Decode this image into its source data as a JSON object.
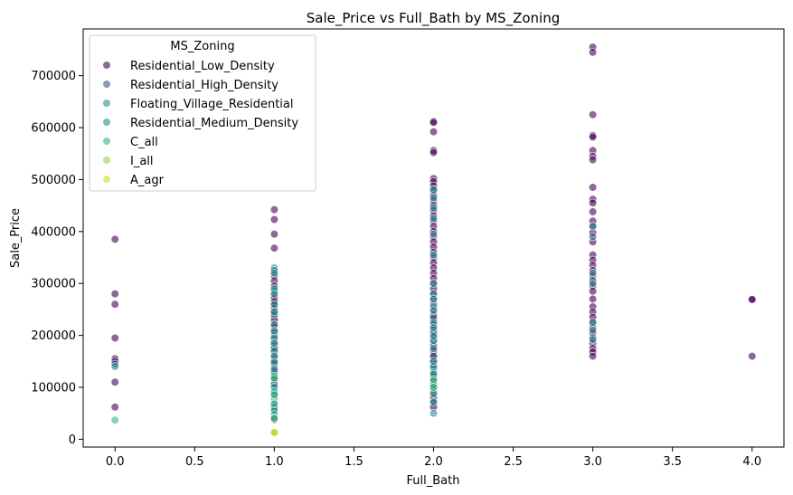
{
  "chart_data": {
    "type": "scatter",
    "title": "Sale_Price vs Full_Bath by MS_Zoning",
    "xlabel": "Full_Bath",
    "ylabel": "Sale_Price",
    "xlim": [
      -0.2,
      4.2
    ],
    "ylim": [
      -15000,
      790000
    ],
    "xticks": [
      0.0,
      0.5,
      1.0,
      1.5,
      2.0,
      2.5,
      3.0,
      3.5,
      4.0
    ],
    "xtick_labels": [
      "0.0",
      "0.5",
      "1.0",
      "1.5",
      "2.0",
      "2.5",
      "3.0",
      "3.5",
      "4.0"
    ],
    "yticks": [
      0,
      100000,
      200000,
      300000,
      400000,
      500000,
      600000,
      700000
    ],
    "ytick_labels": [
      "0",
      "100000",
      "200000",
      "300000",
      "400000",
      "500000",
      "600000",
      "700000"
    ],
    "grid": false,
    "legend": {
      "title": "MS_Zoning",
      "position": "top-left"
    },
    "series": [
      {
        "name": "Residential_Low_Density",
        "color": "#440154",
        "points": [
          [
            0,
            385000
          ],
          [
            0,
            280000
          ],
          [
            0,
            260000
          ],
          [
            0,
            195000
          ],
          [
            0,
            155000
          ],
          [
            0,
            150000
          ],
          [
            0,
            110000
          ],
          [
            0,
            62000
          ],
          [
            1,
            442000
          ],
          [
            1,
            423000
          ],
          [
            1,
            395000
          ],
          [
            1,
            368000
          ],
          [
            1,
            325000
          ],
          [
            1,
            315000
          ],
          [
            1,
            305000
          ],
          [
            1,
            295000
          ],
          [
            1,
            285000
          ],
          [
            1,
            278000
          ],
          [
            1,
            272000
          ],
          [
            1,
            265000
          ],
          [
            1,
            258000
          ],
          [
            1,
            252000
          ],
          [
            1,
            246000
          ],
          [
            1,
            240000
          ],
          [
            1,
            234000
          ],
          [
            1,
            228000
          ],
          [
            1,
            222000
          ],
          [
            1,
            216000
          ],
          [
            1,
            210000
          ],
          [
            1,
            204000
          ],
          [
            1,
            198000
          ],
          [
            1,
            192000
          ],
          [
            1,
            186000
          ],
          [
            1,
            180000
          ],
          [
            1,
            174000
          ],
          [
            1,
            168000
          ],
          [
            1,
            162000
          ],
          [
            1,
            156000
          ],
          [
            1,
            150000
          ],
          [
            1,
            144000
          ],
          [
            1,
            138000
          ],
          [
            1,
            132000
          ],
          [
            1,
            126000
          ],
          [
            1,
            120000
          ],
          [
            1,
            114000
          ],
          [
            1,
            108000
          ],
          [
            1,
            60000
          ],
          [
            1,
            38000
          ],
          [
            2,
            612000
          ],
          [
            2,
            610000
          ],
          [
            2,
            592000
          ],
          [
            2,
            556000
          ],
          [
            2,
            552000
          ],
          [
            2,
            502000
          ],
          [
            2,
            496000
          ],
          [
            2,
            488000
          ],
          [
            2,
            480000
          ],
          [
            2,
            470000
          ],
          [
            2,
            460000
          ],
          [
            2,
            450000
          ],
          [
            2,
            440000
          ],
          [
            2,
            430000
          ],
          [
            2,
            420000
          ],
          [
            2,
            410000
          ],
          [
            2,
            400000
          ],
          [
            2,
            390000
          ],
          [
            2,
            380000
          ],
          [
            2,
            370000
          ],
          [
            2,
            360000
          ],
          [
            2,
            350000
          ],
          [
            2,
            340000
          ],
          [
            2,
            330000
          ],
          [
            2,
            320000
          ],
          [
            2,
            310000
          ],
          [
            2,
            300000
          ],
          [
            2,
            290000
          ],
          [
            2,
            280000
          ],
          [
            2,
            270000
          ],
          [
            2,
            260000
          ],
          [
            2,
            250000
          ],
          [
            2,
            240000
          ],
          [
            2,
            230000
          ],
          [
            2,
            220000
          ],
          [
            2,
            210000
          ],
          [
            2,
            200000
          ],
          [
            2,
            190000
          ],
          [
            2,
            180000
          ],
          [
            2,
            170000
          ],
          [
            2,
            160000
          ],
          [
            2,
            150000
          ],
          [
            2,
            140000
          ],
          [
            2,
            130000
          ],
          [
            2,
            120000
          ],
          [
            2,
            110000
          ],
          [
            2,
            100000
          ],
          [
            2,
            90000
          ],
          [
            2,
            80000
          ],
          [
            2,
            70000
          ],
          [
            2,
            62000
          ],
          [
            3,
            755000
          ],
          [
            3,
            745000
          ],
          [
            3,
            625000
          ],
          [
            3,
            585000
          ],
          [
            3,
            582000
          ],
          [
            3,
            556000
          ],
          [
            3,
            545000
          ],
          [
            3,
            538000
          ],
          [
            3,
            485000
          ],
          [
            3,
            462000
          ],
          [
            3,
            455000
          ],
          [
            3,
            438000
          ],
          [
            3,
            420000
          ],
          [
            3,
            410000
          ],
          [
            3,
            398000
          ],
          [
            3,
            380000
          ],
          [
            3,
            355000
          ],
          [
            3,
            345000
          ],
          [
            3,
            335000
          ],
          [
            3,
            325000
          ],
          [
            3,
            315000
          ],
          [
            3,
            305000
          ],
          [
            3,
            295000
          ],
          [
            3,
            285000
          ],
          [
            3,
            270000
          ],
          [
            3,
            255000
          ],
          [
            3,
            245000
          ],
          [
            3,
            235000
          ],
          [
            3,
            225000
          ],
          [
            3,
            215000
          ],
          [
            3,
            205000
          ],
          [
            3,
            195000
          ],
          [
            3,
            185000
          ],
          [
            3,
            175000
          ],
          [
            3,
            168000
          ],
          [
            3,
            160000
          ],
          [
            4,
            270000
          ],
          [
            4,
            269000
          ],
          [
            4,
            160000
          ]
        ]
      },
      {
        "name": "Residential_High_Density",
        "color": "#3b528b",
        "points": [
          [
            0,
            145000
          ],
          [
            1,
            176000
          ],
          [
            1,
            152000
          ],
          [
            1,
            130000
          ],
          [
            1,
            105000
          ],
          [
            1,
            88000
          ],
          [
            2,
            235000
          ],
          [
            2,
            205000
          ],
          [
            2,
            160000
          ],
          [
            2,
            135000
          ],
          [
            3,
            390000
          ]
        ]
      },
      {
        "name": "Floating_Village_Residential",
        "color": "#21918c",
        "points": [
          [
            0,
            140000
          ],
          [
            1,
            285000
          ],
          [
            1,
            240000
          ],
          [
            1,
            200000
          ],
          [
            2,
            480000
          ],
          [
            2,
            465000
          ],
          [
            2,
            445000
          ],
          [
            2,
            425000
          ],
          [
            2,
            395000
          ],
          [
            2,
            355000
          ],
          [
            2,
            300000
          ],
          [
            2,
            280000
          ],
          [
            2,
            255000
          ],
          [
            2,
            225000
          ],
          [
            2,
            215000
          ],
          [
            2,
            190000
          ],
          [
            2,
            175000
          ],
          [
            2,
            140000
          ],
          [
            2,
            128000
          ],
          [
            2,
            112000
          ],
          [
            2,
            95000
          ],
          [
            2,
            50000
          ],
          [
            3,
            410000
          ],
          [
            3,
            320000
          ],
          [
            3,
            300000
          ],
          [
            3,
            225000
          ],
          [
            3,
            210000
          ],
          [
            3,
            192000
          ]
        ]
      },
      {
        "name": "Residential_Medium_Density",
        "color": "#21918c",
        "points": [
          [
            1,
            330000
          ],
          [
            1,
            325000
          ],
          [
            1,
            320000
          ],
          [
            1,
            290000
          ],
          [
            1,
            280000
          ],
          [
            1,
            260000
          ],
          [
            1,
            245000
          ],
          [
            1,
            220000
          ],
          [
            1,
            208000
          ],
          [
            1,
            195000
          ],
          [
            1,
            185000
          ],
          [
            1,
            170000
          ],
          [
            1,
            160000
          ],
          [
            1,
            148000
          ],
          [
            1,
            135000
          ],
          [
            1,
            122000
          ],
          [
            1,
            115000
          ],
          [
            1,
            100000
          ],
          [
            1,
            92000
          ],
          [
            1,
            85000
          ],
          [
            1,
            78000
          ],
          [
            1,
            70000
          ],
          [
            1,
            62000
          ],
          [
            1,
            55000
          ],
          [
            1,
            48000
          ],
          [
            1,
            42000
          ],
          [
            2,
            270000
          ],
          [
            2,
            248000
          ],
          [
            2,
            198000
          ],
          [
            2,
            150000
          ],
          [
            2,
            125000
          ],
          [
            2,
            105000
          ],
          [
            2,
            88000
          ],
          [
            2,
            72000
          ]
        ]
      },
      {
        "name": "C_all",
        "color": "#35b779",
        "points": [
          [
            0,
            37000
          ],
          [
            1,
            118000
          ],
          [
            1,
            86000
          ],
          [
            1,
            68000
          ],
          [
            1,
            40000
          ],
          [
            2,
            115000
          ],
          [
            2,
            100000
          ]
        ]
      },
      {
        "name": "I_all",
        "color": "#90d743",
        "points": [
          [
            1,
            14000
          ],
          [
            1,
            12500
          ]
        ]
      },
      {
        "name": "A_agr",
        "color": "#cde11d",
        "points": [
          [
            1,
            13000
          ]
        ]
      }
    ]
  }
}
